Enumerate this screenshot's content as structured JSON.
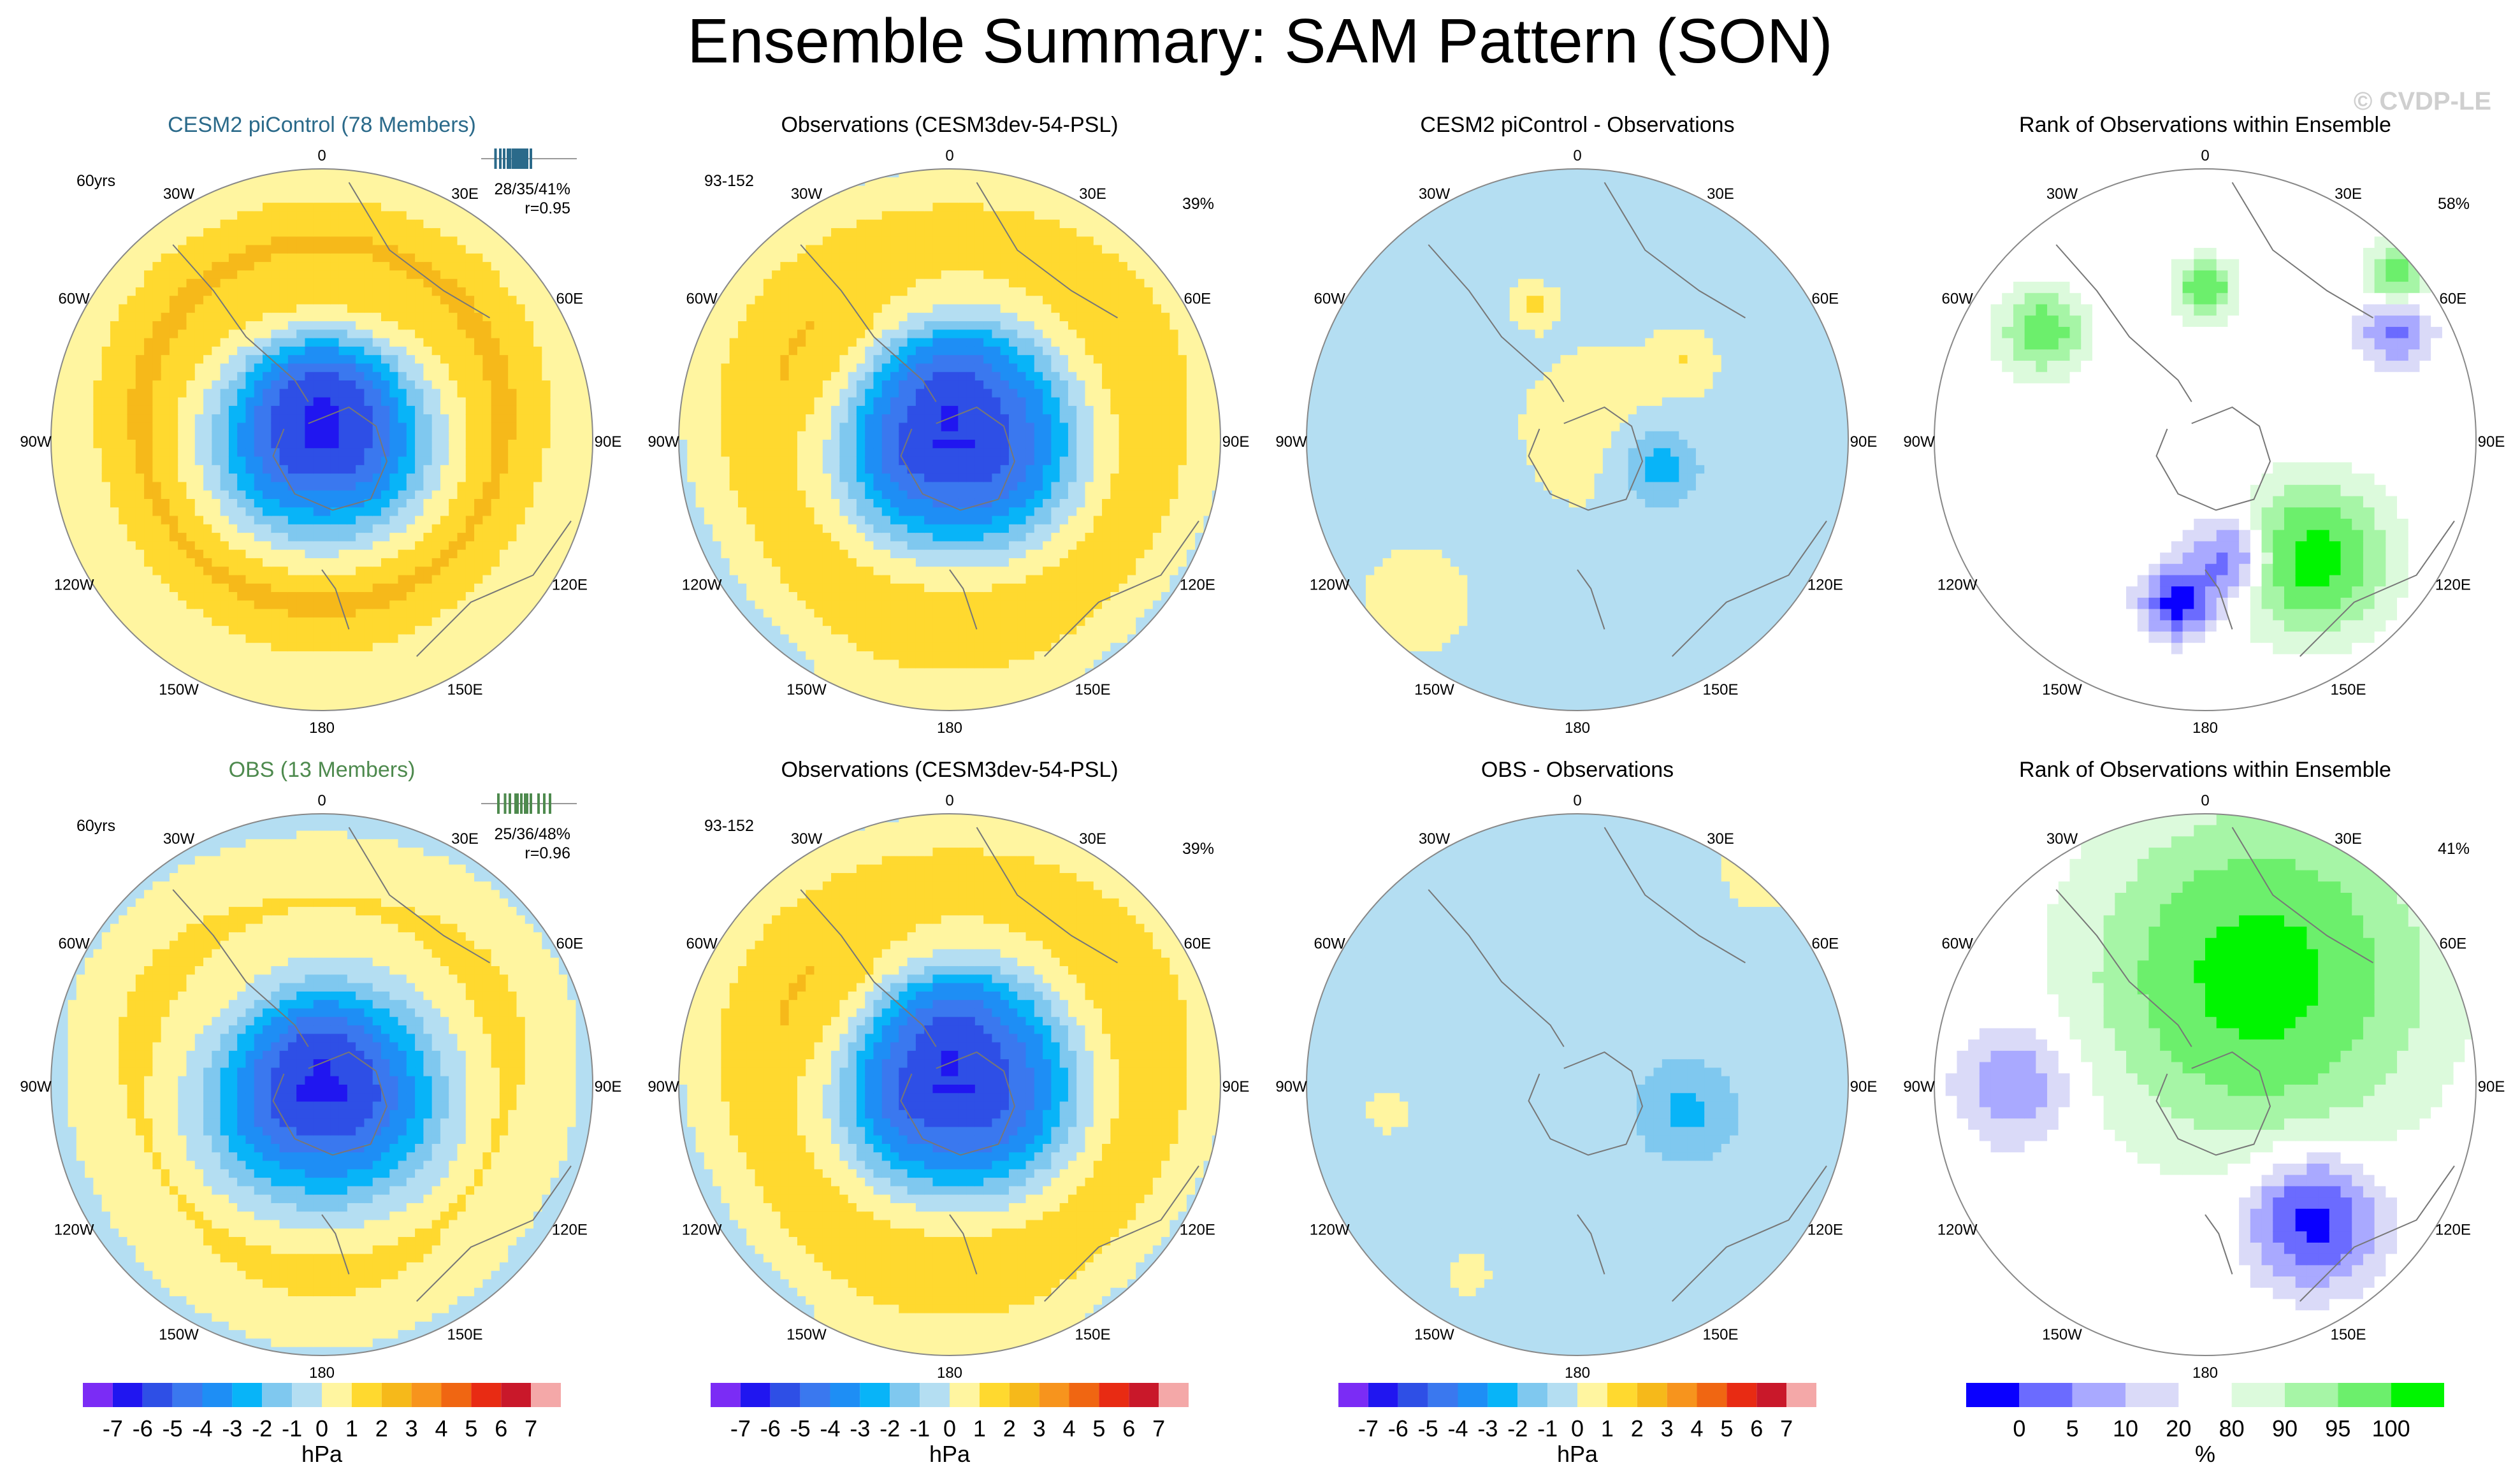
{
  "figure": {
    "title": "Ensemble Summary: SAM Pattern (SON)",
    "credit": "© CVDP-LE"
  },
  "colors": {
    "ens_title": "#2b6a8a",
    "obs_title": "#4e8a4e",
    "land": "#777777",
    "border": "#888888"
  },
  "longitude_labels": [
    "0",
    "30E",
    "60E",
    "90E",
    "120E",
    "150E",
    "180",
    "150W",
    "120W",
    "90W",
    "60W",
    "30W"
  ],
  "chart_data": [
    {
      "type": "heatmap",
      "panel": "ensemble-mean-cesm2",
      "title": "CESM2 piControl (78 Members)",
      "title_color": "#2b6a8a",
      "left_label": "60yrs",
      "stats": [
        "28/35/41%",
        "r=0.95"
      ],
      "histogram": {
        "color": "#2b6a8a",
        "ticks": [
          0.15,
          0.2,
          0.24,
          0.28,
          0.3,
          0.33,
          0.35,
          0.36,
          0.38,
          0.4,
          0.42,
          0.44,
          0.46,
          0.48,
          0.52
        ]
      },
      "field": {
        "kind": "sam",
        "zonal": [
          -6.5,
          -5.5,
          -3,
          0.2,
          2.3,
          1.0,
          0.2
        ],
        "polar_shift": [
          0.0,
          -0.06
        ],
        "wave": [
          0.4,
          2.3,
          0.25,
          0.45,
          0.08
        ]
      }
    },
    {
      "type": "heatmap",
      "panel": "observations-top",
      "title": "Observations (CESM3dev-54-PSL)",
      "left_label": "93-152",
      "pct": "39%",
      "field": {
        "kind": "sam",
        "zonal": [
          -6.2,
          -5.5,
          -3.5,
          -0.3,
          1.8,
          1.2,
          0.0
        ],
        "polar_shift": [
          0.02,
          -0.03
        ],
        "wave": [
          0.45,
          1.4,
          0.35,
          0.45,
          0.2
        ]
      }
    },
    {
      "type": "heatmap",
      "panel": "difference-cesm2",
      "title": "CESM2 piControl - Observations",
      "field": {
        "kind": "blobs",
        "base": -0.5,
        "blobs": [
          [
            0.65,
            0.55,
            0.15,
            -2.5
          ],
          [
            0.7,
            0.35,
            0.1,
            1.2
          ],
          [
            0.42,
            0.25,
            0.08,
            1.5
          ],
          [
            0.55,
            0.48,
            0.4,
            0.9
          ],
          [
            0.2,
            0.8,
            0.2,
            1.3
          ]
        ]
      }
    },
    {
      "type": "heatmap",
      "panel": "rank-cesm2",
      "title": "Rank of Observations within Ensemble",
      "pct": "58%",
      "field": {
        "kind": "rank",
        "blocky": true,
        "blobs": [
          [
            0.7,
            0.72,
            0.25,
            2.6
          ],
          [
            0.45,
            0.8,
            0.12,
            -2.6
          ],
          [
            0.55,
            0.72,
            0.14,
            -2.0
          ],
          [
            0.85,
            0.3,
            0.12,
            -1.6
          ],
          [
            0.5,
            0.22,
            0.1,
            2.2
          ],
          [
            0.2,
            0.3,
            0.14,
            2.0
          ],
          [
            0.85,
            0.2,
            0.1,
            1.8
          ],
          [
            0.95,
            0.1,
            0.15,
            2.4
          ]
        ]
      }
    },
    {
      "type": "heatmap",
      "panel": "ensemble-mean-obs",
      "title": "OBS (13 Members)",
      "title_color": "#4e8a4e",
      "left_label": "60yrs",
      "stats": [
        "25/36/48%",
        "r=0.96"
      ],
      "histogram": {
        "color": "#4e8a4e",
        "ticks": [
          0.18,
          0.25,
          0.3,
          0.36,
          0.38,
          0.42,
          0.46,
          0.48,
          0.52,
          0.6,
          0.66,
          0.72
        ]
      },
      "field": {
        "kind": "sam",
        "zonal": [
          -6.4,
          -5.5,
          -3.2,
          -0.5,
          1.2,
          0.7,
          -0.3
        ],
        "polar_shift": [
          0.0,
          0.0
        ],
        "wave": [
          0.4,
          1.4,
          0.3,
          0.45,
          0.15
        ]
      }
    },
    {
      "type": "heatmap",
      "panel": "observations-bottom",
      "title": "Observations (CESM3dev-54-PSL)",
      "left_label": "93-152",
      "pct": "39%",
      "field": {
        "kind": "sam",
        "zonal": [
          -6.2,
          -5.5,
          -3.5,
          -0.3,
          1.8,
          1.2,
          0.0
        ],
        "polar_shift": [
          0.02,
          -0.03
        ],
        "wave": [
          0.45,
          1.4,
          0.35,
          0.45,
          0.2
        ]
      }
    },
    {
      "type": "heatmap",
      "panel": "difference-obs",
      "title": "OBS - Observations",
      "field": {
        "kind": "blobs",
        "base": -0.6,
        "blobs": [
          [
            0.7,
            0.55,
            0.16,
            -1.7
          ],
          [
            0.15,
            0.55,
            0.12,
            0.9
          ],
          [
            0.85,
            0.1,
            0.25,
            0.9
          ],
          [
            0.3,
            0.85,
            0.12,
            0.9
          ]
        ]
      }
    },
    {
      "type": "heatmap",
      "panel": "rank-obs",
      "title": "Rank of Observations within Ensemble",
      "pct": "41%",
      "field": {
        "kind": "rank",
        "blocky": true,
        "blobs": [
          [
            0.7,
            0.75,
            0.22,
            -2.6
          ],
          [
            0.6,
            0.3,
            0.55,
            2.6
          ],
          [
            0.15,
            0.5,
            0.2,
            -1.4
          ]
        ]
      }
    }
  ],
  "colorbars": [
    {
      "type": "colorbar",
      "unit": "hPa",
      "labels": [
        "-7",
        "-6",
        "-5",
        "-4",
        "-3",
        "-2",
        "-1",
        "0",
        "1",
        "2",
        "3",
        "4",
        "5",
        "6",
        "7"
      ],
      "colors": [
        "#7b2cf5",
        "#2016f0",
        "#2e4fe6",
        "#3a78ef",
        "#1e8ef5",
        "#08b4f8",
        "#7fc8ef",
        "#b4def2",
        "#fff5a0",
        "#ffd92f",
        "#f6b91a",
        "#f7941d",
        "#f06612",
        "#e82b13",
        "#c9182a",
        "#f4a8a8"
      ]
    },
    {
      "type": "colorbar",
      "unit": "hPa",
      "labels": [
        "-7",
        "-6",
        "-5",
        "-4",
        "-3",
        "-2",
        "-1",
        "0",
        "1",
        "2",
        "3",
        "4",
        "5",
        "6",
        "7"
      ],
      "colors": [
        "#7b2cf5",
        "#2016f0",
        "#2e4fe6",
        "#3a78ef",
        "#1e8ef5",
        "#08b4f8",
        "#7fc8ef",
        "#b4def2",
        "#fff5a0",
        "#ffd92f",
        "#f6b91a",
        "#f7941d",
        "#f06612",
        "#e82b13",
        "#c9182a",
        "#f4a8a8"
      ]
    },
    {
      "type": "colorbar",
      "unit": "hPa",
      "labels": [
        "-7",
        "-6",
        "-5",
        "-4",
        "-3",
        "-2",
        "-1",
        "0",
        "1",
        "2",
        "3",
        "4",
        "5",
        "6",
        "7"
      ],
      "colors": [
        "#7b2cf5",
        "#2016f0",
        "#2e4fe6",
        "#3a78ef",
        "#1e8ef5",
        "#08b4f8",
        "#7fc8ef",
        "#b4def2",
        "#fff5a0",
        "#ffd92f",
        "#f6b91a",
        "#f7941d",
        "#f06612",
        "#e82b13",
        "#c9182a",
        "#f4a8a8"
      ]
    },
    {
      "type": "colorbar",
      "unit": "%",
      "labels": [
        "0",
        "5",
        "10",
        "20",
        "80",
        "90",
        "95",
        "100"
      ],
      "colors": [
        "#0a00ff",
        "#6b6bff",
        "#a9a9ff",
        "#dadaf8",
        "#ffffff",
        "#dcfadc",
        "#a6f5a6",
        "#6cef6c",
        "#00f500"
      ]
    }
  ]
}
